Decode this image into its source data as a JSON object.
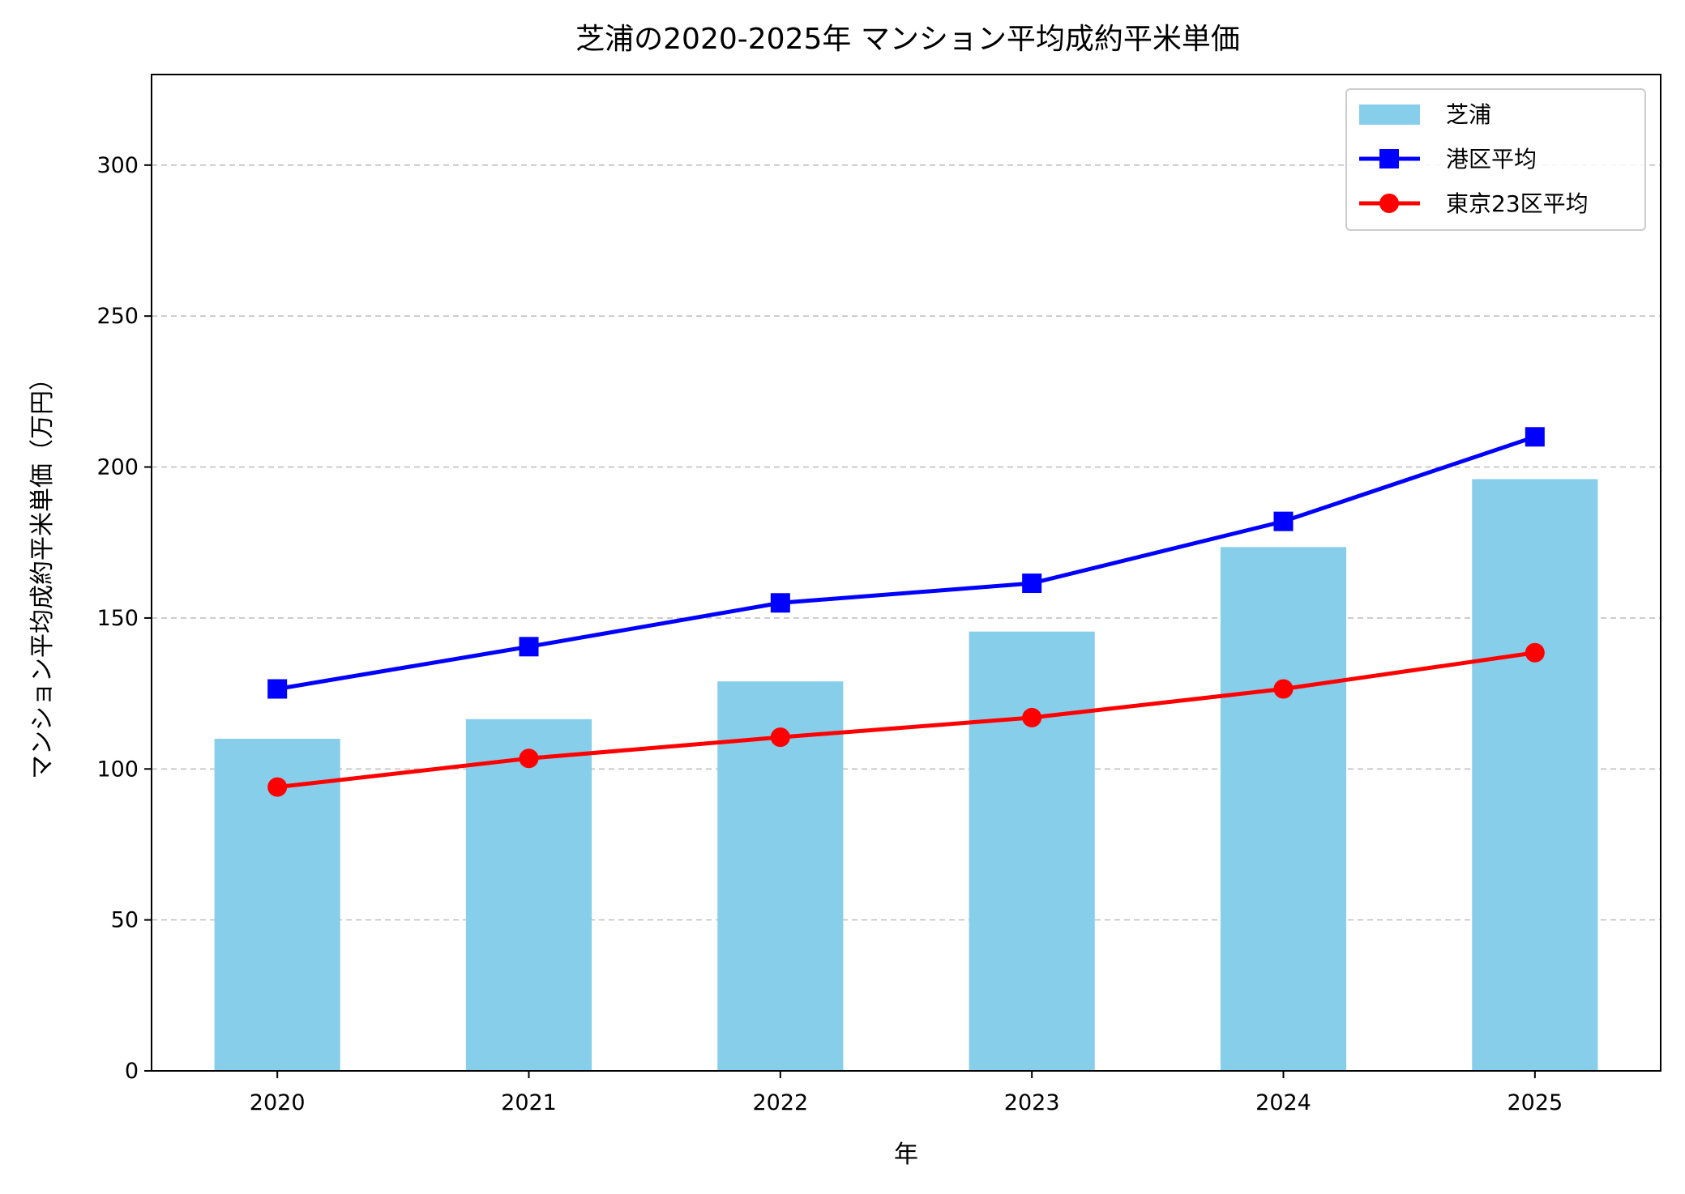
{
  "chart_data": {
    "type": "bar+line",
    "title": "芝浦の2020-2025年 マンション平均成約平米単価",
    "xlabel": "年",
    "ylabel": "マンション平均成約平米単価（万円）",
    "categories": [
      "2020",
      "2021",
      "2022",
      "2023",
      "2024",
      "2025"
    ],
    "ylim": [
      0,
      330
    ],
    "yticks": [
      0,
      50,
      100,
      150,
      200,
      250,
      300
    ],
    "grid": "y dashed",
    "legend_position": "top-right",
    "series": [
      {
        "name": "芝浦",
        "type": "bar",
        "color": "#87CEEB",
        "values": [
          110,
          116.5,
          129,
          145.5,
          173.5,
          196
        ]
      },
      {
        "name": "港区平均",
        "type": "line",
        "marker": "square",
        "color": "#0000FF",
        "values": [
          126.5,
          140.5,
          155,
          161.5,
          182,
          210
        ]
      },
      {
        "name": "東京23区平均",
        "type": "line",
        "marker": "circle",
        "color": "#FF0000",
        "values": [
          94,
          103.5,
          110.5,
          117,
          126.5,
          138.5
        ]
      }
    ]
  }
}
